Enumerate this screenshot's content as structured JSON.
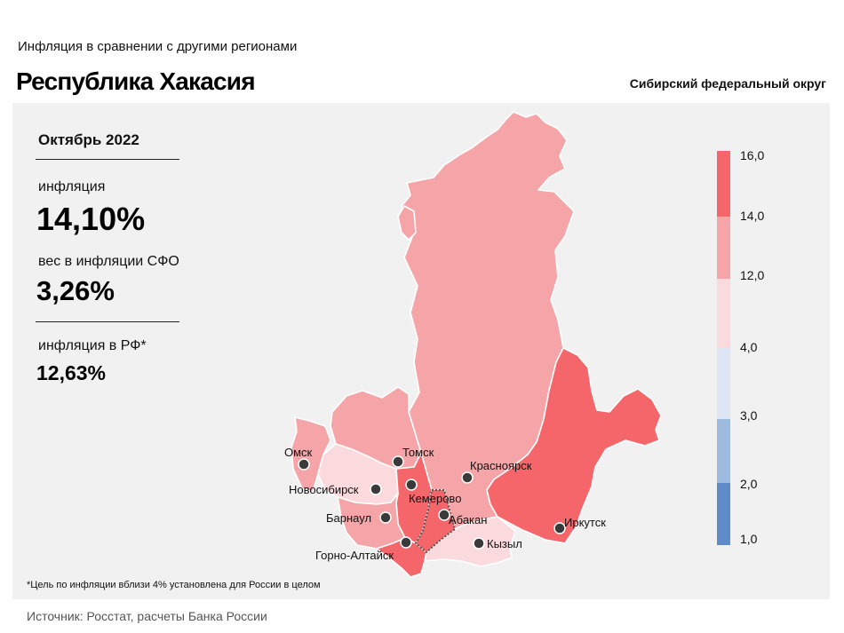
{
  "header": {
    "subtitle": "Инфляция в сравнении с другими регионами",
    "title": "Республика Хакасия",
    "district": "Сибирский федеральный округ"
  },
  "stats": {
    "period": "Октябрь 2022",
    "inflation_label": "инфляция",
    "inflation_value": "14,10%",
    "weight_label": "вес в инфляции СФО",
    "weight_value": "3,26%",
    "rf_label": "инфляция в РФ*",
    "rf_value": "12,63%"
  },
  "footnote": "*Цель по инфляции вблизи 4% установлена для России в целом",
  "source": "Источник: Росстат, расчеты Банка России",
  "legend": {
    "labels": [
      "16,0",
      "14,0",
      "12,0",
      "4,0",
      "3,0",
      "2,0",
      "1,0"
    ],
    "colors": [
      "#f4666a",
      "#f5a5a7",
      "#fadadd",
      "#dde5f5",
      "#9dbadf",
      "#5f8cc8"
    ]
  },
  "colors": {
    "band_high": "#f4666a",
    "band_mid": "#f5a5a7",
    "band_low": "#fadadd"
  },
  "cities": {
    "omsk": "Омск",
    "tomsk": "Томск",
    "krasnoyarsk": "Красноярск",
    "novosibirsk": "Новосибирск",
    "kemerovo": "Кемерово",
    "abakan": "Абакан",
    "barnaul": "Барнаул",
    "irkutsk": "Иркутск",
    "gorno_altaysk": "Горно-Алтайск",
    "kyzyl": "Кызыл"
  }
}
